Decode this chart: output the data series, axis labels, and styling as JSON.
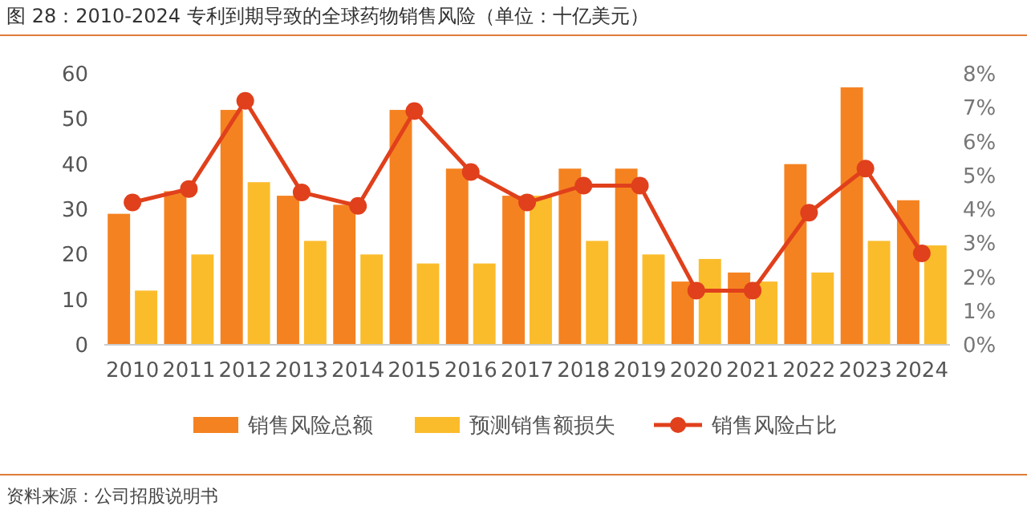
{
  "chart_data": {
    "type": "bar",
    "title": "图 28：2010-2024 专利到期导致的全球药物销售风险（单位：十亿美元）",
    "categories": [
      "2010",
      "2011",
      "2012",
      "2013",
      "2014",
      "2015",
      "2016",
      "2017",
      "2018",
      "2019",
      "2020",
      "2021",
      "2022",
      "2023",
      "2024"
    ],
    "series": [
      {
        "name": "销售风险总额",
        "color": "#f58220",
        "values": [
          29,
          34,
          52,
          33,
          31,
          52,
          39,
          33,
          39,
          39,
          14,
          16,
          40,
          57,
          32
        ]
      },
      {
        "name": "预测销售额损失",
        "color": "#fbbc2c",
        "values": [
          12,
          20,
          36,
          23,
          20,
          18,
          18,
          33,
          23,
          20,
          19,
          14,
          16,
          23,
          22
        ]
      },
      {
        "name": "销售风险占比",
        "type": "line",
        "axis": "y2",
        "color": "#e0401c",
        "values": [
          4.2,
          4.6,
          7.2,
          4.5,
          4.1,
          6.9,
          5.1,
          4.2,
          4.7,
          4.7,
          1.6,
          1.6,
          3.9,
          5.2,
          2.7
        ]
      }
    ],
    "ylim": [
      0,
      60
    ],
    "yticks": [
      0,
      10,
      20,
      30,
      40,
      50,
      60
    ],
    "y2lim": [
      0,
      8
    ],
    "y2ticks": [
      {
        "value": 0,
        "label": "0%"
      },
      {
        "value": 1,
        "label": "1%"
      },
      {
        "value": 2,
        "label": "2%"
      },
      {
        "value": 3,
        "label": "3%"
      },
      {
        "value": 4,
        "label": "4%"
      },
      {
        "value": 5,
        "label": "5%"
      },
      {
        "value": 6,
        "label": "6%"
      },
      {
        "value": 7,
        "label": "7%"
      },
      {
        "value": 8,
        "label": "8%"
      }
    ],
    "marker": "circle",
    "grid": false,
    "legend": "bottom",
    "annotations": [
      "资料来源：公司招股说明书"
    ]
  }
}
